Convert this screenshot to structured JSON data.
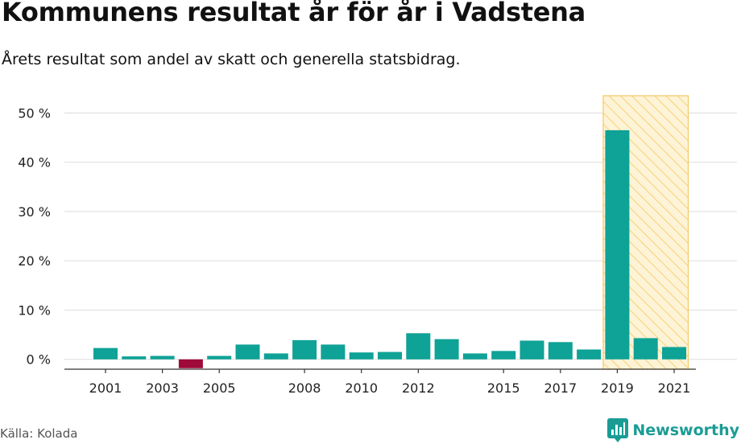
{
  "title": "Kommunens resultat år för år i Vadstena",
  "subtitle": "Årets resultat som andel av skatt och generella statsbidrag.",
  "source": "Källa: Kolada",
  "brand": {
    "name": "Newsworthy",
    "icon": "newsworthy-logo-icon"
  },
  "colors": {
    "positive": "#0fa296",
    "negative": "#9e0a3a",
    "highlight_stroke": "#f5c862",
    "highlight_fill": "#fdf3d6",
    "grid": "#dddddd"
  },
  "chart_data": {
    "type": "bar",
    "categories": [
      "2001",
      "2002",
      "2003",
      "2004",
      "2005",
      "2006",
      "2007",
      "2008",
      "2009",
      "2010",
      "2011",
      "2012",
      "2013",
      "2014",
      "2015",
      "2016",
      "2017",
      "2018",
      "2019",
      "2020",
      "2021"
    ],
    "values": [
      2.3,
      0.6,
      0.7,
      -1.8,
      0.7,
      3.0,
      1.2,
      3.9,
      3.0,
      1.4,
      1.5,
      5.3,
      4.1,
      1.2,
      1.7,
      3.8,
      3.5,
      2.0,
      46.5,
      4.3,
      2.5
    ],
    "x_tick_labels": [
      "2001",
      "2003",
      "2005",
      "2008",
      "2010",
      "2012",
      "2015",
      "2017",
      "2019",
      "2021"
    ],
    "y_ticks": [
      0,
      10,
      20,
      30,
      40,
      50
    ],
    "y_tick_labels": [
      "0 %",
      "10 %",
      "20 %",
      "30 %",
      "40 %",
      "50 %"
    ],
    "ylim": [
      -2,
      53.5
    ],
    "highlight_categories": [
      "2019",
      "2020",
      "2021"
    ],
    "xlabel": "",
    "ylabel": "",
    "grid": true,
    "legend": "none"
  }
}
